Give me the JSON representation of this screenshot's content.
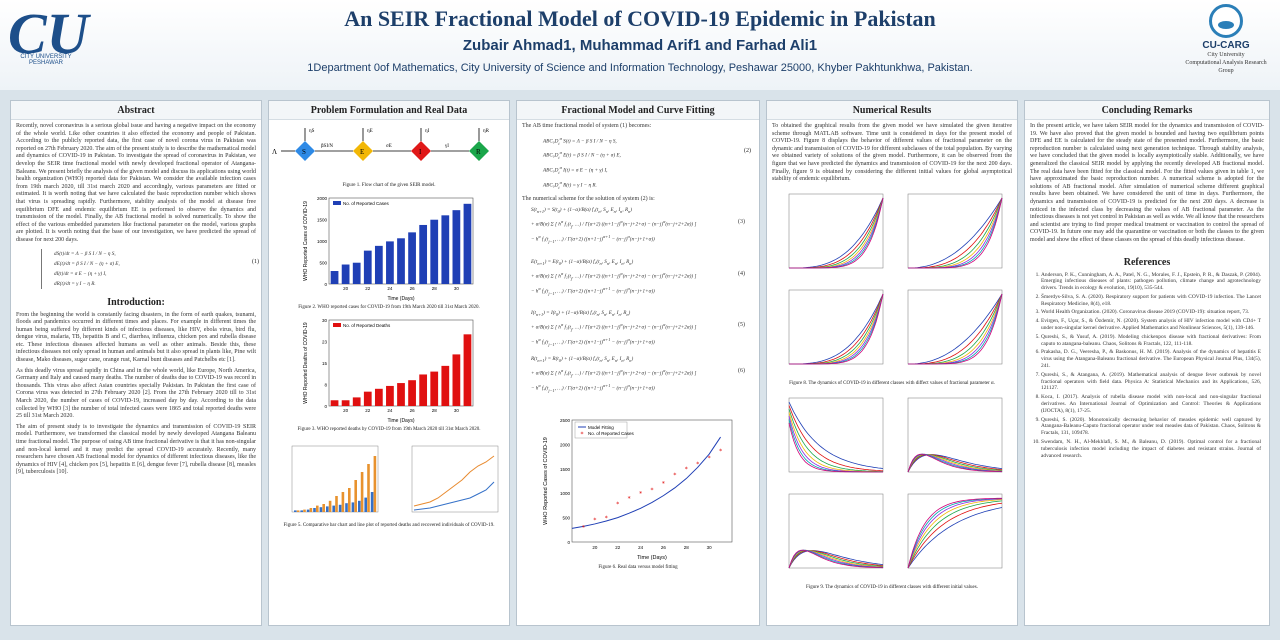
{
  "header": {
    "title": "An SEIR Fractional Model of COVID-19 Epidemic in Pakistan",
    "authors": "Zubair Ahmad1, Muhammad Arif1 and Farhad Ali1",
    "affiliation": "1Department 0of Mathematics, City University of Science and Information Technology, Peshawar 25000, Khyber Pakhtunkhwa, Pakistan.",
    "left_logo": {
      "mark": "CU",
      "text": "CITY UNIVERSITY PESHAWAR"
    },
    "right_logo": {
      "name": "CU-CARG",
      "line1": "City University",
      "line2": "Computational Analysis Research Group"
    }
  },
  "abstract": {
    "heading": "Abstract",
    "text": "Recently, novel coronavirus is a serious global issue and having a negative impact on the economy of the whole world. Like other countries it also effected the economy and people of Pakistan. According to the publicly reported data, the first case of novel corona virus in Pakistan was reported on 27th February 2020. The aim of the present study is to describe the mathematical model and dynamics of COVID-19 in Pakistan. To investigate the spread of coronavirus in Pakistan, we develop the SEIR time fractional model with newly developed fractional operator of Atangana-Baleanu. We present briefly the analysis of the given model and discuss its applications using world health organization (WHO) reported data for Pakistan. We consider the available infection cases from 19th march 2020, till 31st march 2020 and accordingly, various parameters are fitted or estimated. It is worth noting that we have calculated the basic reproduction number which shows that virus is spreading rapidly. Furthermore, stability analysis of the model at disease free equilibrium DFE and endemic equilibrium EE is performed to observe the dynamics and transmission of the model. Finally, the AB fractional model is solved numerically. To show the effect of the various embedded parameters like fractional parameter on the model, various graphs are plotted. It is worth noting that the base of our investigation, we have predicted the spread of disease for next 200 days.",
    "eq_number": "(1)"
  },
  "introduction": {
    "heading": "Introduction:",
    "p1": "From the beginning the world is constantly facing disasters, in the form of earth quakes, tsunami, floods and pandemics occurred in different times and places. For example in different times the human being suffered by different kinds of infectious diseases, like HIV, ebola virus, bird flu, dengue virus, malaria, TB, hepatitis B and C, diarrhea, influenza, chicken pox and rubella disease etc. These infectious diseases affected humans as well as other animals. Beside this, these infectious diseases not only spread in human and animals but it also spread in plants like, Pine wilt disease, Mako diseases, sugar cane, orange rust, Karnal bunt diseases and Patchelbs etc [1].",
    "p2": "As this deadly virus spread rapidly in China and in the whole world, like Europe, North America, Germany and Italy and caused many deaths. The number of deaths due to COVID-19 was record in thousands. This virus also affect Asian countries specially Pakistan. In Pakistan the first case of Corona virus was detected in 27th February 2020 [2]. From the 27th February 2020 till to 31st March 2020, the number of cases of COVID-19, increased day by day. According to the data collected by WHO [3] the number of total infected cases were 1865 and total reported deaths were 25 till 31st March 2020.",
    "p3": "The aim of present study is to investigate the dynamics and transmission of COVID-19 SEIR model. Furthermore, we transformed the classical model by newly developed Atangana Baleanu time fractional model. The purpose of using AB time fractional derivative is that it has non-singular and non-local kernel and it may predict the spread COVID-19 accurately. Recently, many researchers have chosen AB fractional model for dynamics of different infectious diseases, like the dynamics of HIV [4], chicken pox [5], hepatitis E [6], dengue fever [7], rubella disease [8], measles [9], tuberculosis [10]."
  },
  "problem": {
    "heading": "Problem Formulation  and Real Data",
    "fig1_caption": "Figure 1. Flow chart of the given SEIR model.",
    "fig2_caption": "Figure 2. WHO reported cases for COVID-19 from 19th March 2020 till 31st March 2020.",
    "fig3_caption": "Figure 3. WHO reported deaths by COVID-19 from 19th March 2020 till 31st March 2020.",
    "fig5_caption": "Figure 5. Comparative bar chart and line plot of reported deaths and recovered individuals of COVID-19.",
    "flow_nodes": [
      "S",
      "E",
      "I",
      "R"
    ],
    "flow_labels": {
      "lambda": "Λ",
      "beta": "βSI/N",
      "sigma": "σE",
      "gamma": "γI",
      "mu_s": "ηS",
      "mu_e": "ηE",
      "mu_i": "ηI",
      "mu_r": "ηR"
    }
  },
  "fractional": {
    "heading": "Fractional Model and Curve Fitting",
    "intro": "The AB time fractional model of system (1) becomes:",
    "eq_label_2": "(2)",
    "scheme_intro": "The numerical scheme for the solution of system (2) is:",
    "eq_labels": [
      "(3)",
      "(4)",
      "(5)",
      "(6)"
    ],
    "fig6_caption": "Figure 6. Real data versus model fitting"
  },
  "numerical": {
    "heading": "Numerical Results",
    "text": "To obtained the graphical results from the given model we have simulated the given iterative scheme through MATLAB software. Time unit is considered in days for the present model of COVID-19. Figure 8 displays the behavior of different values of fractional parameter on the dynamic and transmission of COVID-19 for different subclasses of the total population. By varying we obtained variety of solutions of the given model. Furthermore, it can be observed from the figure that we have predicted the dynamics and transmission of COVID-19 for the next 200 days. Finally, figure 9 is obtained by considering the different initial values for global asymptotical stability of endemic equilibrium.",
    "fig8_caption": "Figure 8. The dynamics of COVID-19 in different classes with diffect values of fractional parameter α.",
    "fig9_caption": "Figure 9. The dynamics of COVID-19 in different classes with different initial values."
  },
  "concluding": {
    "heading": "Concluding Remarks",
    "text": "In the present article, we have taken SEIR model for the dynamics and transmission of COVID-19. We have also proved that the given model is bounded and having two equilibrium points DFE and EE is calculated for the steady state of the presented model. Furthermore, the basic reproduction number is calculated using next generation technique. Through stability analysis, we have concluded that the given model is locally asymptotically stable. Additionally, we have generalized the classical SEIR model by applying the recently developed AB fractional model. The real data have been fitted for the classical model. For the fitted values given in table 1, we have approximated the basic reproduction number. A numerical scheme is adopted for the solutions of AB fractional model. After simulation of numerical scheme different graphical results have been obtained. We have considered the unit of time in days. Furthermore, the dynamics and transmission of COVID-19 is predicted for the next 200 days. A decrease is noticed in the infected class by decreasing the values of AB fractional parameter. As the infectious diseases is not yet control in Pakistan as well as wide. We all know that the researchers and scientist are trying to find proper medical treatment or vaccination to control the spread of COVID-19. In future one may add the quarantine or vaccination or both the classes to the given model and show the effect of these classes on the spread of this deadly infectious disease."
  },
  "references": {
    "heading": "References",
    "items": [
      "Anderson, P. K., Cunningham, A. A., Patel, N. G., Morales, F. J., Epstein, P. R., & Daszak, P. (2004). Emerging infectious diseases of plants: pathogen pollution, climate change and agrotechnology drivers. Trends in ecology & evolution, 19(10), 535-544.",
      "Šmerdys-Silva, S. A. (2020). Respiratory support for patients with COVID-19 infection. The Lancet Respiratory Medicine, 8(4), e18.",
      "World Health Organization. (2020). Coronavirus disease 2019 (COVID-19): situation report, 73.",
      "Evirgen, F., Uçar, S., & Özdemir, N. (2020). System analysis of HIV infection model with CD4+ T under non-singular kernel derivative. Applied Mathematics and Nonlinear Sciences, 5(1), 139-146.",
      "Qureshi, S., & Yusuf, A. (2019). Modeling chickenpox disease with fractional derivatives: From caputo to atangana-baleanu. Chaos, Solitons & Fractals, 122, 111-118.",
      "Prakasha, D. G., Veeresha, P., & Baskonus, H. M. (2019). Analysis of the dynamics of hepatitis E virus using the Atangana-Baleanu fractional derivative. The European Physical Journal Plus, 134(5), 241.",
      "Qureshi, S., & Atangana, A. (2019). Mathematical analysis of dengue fever outbreak by novel fractional operators with field data. Physica A: Statistical Mechanics and its Applications, 526, 121127.",
      "Koca, I. (2017). Analysis of rubella disease model with non-local and non-singular fractional derivatives. An International Journal of Optimization and Control: Theories & Applications (IJOCTA), 8(1), 17-25.",
      "Qureshi, S. (2020). Monotonically decreasing behavior of measles epidemic well captured by Atangana-Baleanu-Caputo fractional operator under real measles data of Pakistan. Chaos, Solitons & Fractals, 131, 109478.",
      "Swendam, N. H., Al-Mekhlafi, S. M., & Baleanu, D. (2019). Optimal control for a fractional tuberculosis infection model including the impact of diabetes and resistant strains. Journal of advanced research."
    ]
  },
  "chart_data": [
    {
      "type": "bar",
      "id": "fig2",
      "legend": [
        "No. of Reported Cases"
      ],
      "xlabel": "Time (Days)",
      "ylabel": "WHO Reported Cases of COVID-19",
      "x": [
        19,
        20,
        21,
        22,
        23,
        24,
        25,
        26,
        27,
        28,
        29,
        30,
        31
      ],
      "values": [
        302,
        453,
        495,
        776,
        887,
        991,
        1063,
        1201,
        1373,
        1495,
        1597,
        1717,
        1865
      ],
      "ylim": [
        0,
        2000
      ],
      "color": "#1f3fb5"
    },
    {
      "type": "bar",
      "id": "fig3",
      "legend": [
        "No. of Reported Deaths"
      ],
      "xlabel": "Time (Days)",
      "ylabel": "WHO Reported Deaths of COVID-19",
      "x": [
        19,
        20,
        21,
        22,
        23,
        24,
        25,
        26,
        27,
        28,
        29,
        30,
        31
      ],
      "values": [
        2,
        2,
        3,
        5,
        6,
        7,
        8,
        9,
        11,
        12,
        14,
        18,
        25
      ],
      "ylim": [
        0,
        30
      ],
      "color": "#e01010"
    },
    {
      "type": "line",
      "id": "fig6",
      "legend": [
        "Model Fitting",
        "No. of Reported Cases"
      ],
      "xlabel": "Time (Days)",
      "ylabel": "WHO Reported Cases of COVID-19",
      "x_model": [
        18,
        19,
        20,
        21,
        22,
        23,
        24,
        25,
        26,
        27,
        28,
        29,
        30,
        31
      ],
      "model": [
        280,
        320,
        370,
        430,
        500,
        590,
        690,
        810,
        950,
        1110,
        1300,
        1530,
        1800,
        2150
      ],
      "x_cases": [
        19,
        20,
        21,
        22,
        23,
        24,
        25,
        26,
        27,
        28,
        29,
        30,
        31
      ],
      "cases": [
        302,
        453,
        495,
        776,
        887,
        991,
        1063,
        1201,
        1373,
        1495,
        1597,
        1717,
        1865
      ],
      "ylim": [
        0,
        2500
      ],
      "xlim": [
        18,
        32
      ]
    }
  ]
}
